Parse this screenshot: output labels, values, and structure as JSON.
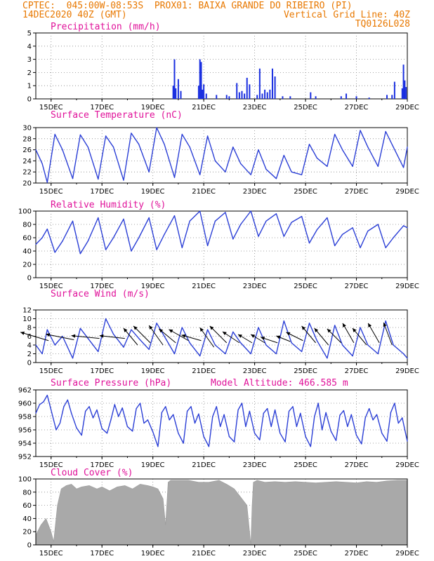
{
  "header": {
    "line1_left": "CPTEC:  045:00W-08:53S  PROX01: BAIXA GRANDE DO RIBEIRO (PI)",
    "line2_left": "14DEC2020 40Z (GMT)",
    "line2_right": "Vertical Grid Line: 40Z",
    "line3_right": "TQ0126L028"
  },
  "colors": {
    "header": "#e87800",
    "title": "#e0129a",
    "line": "#2b3fd6",
    "bar": "#a9a9a9",
    "precip": "#1a2fe0"
  },
  "x_axis": {
    "labels": [
      "15DEC",
      "17DEC",
      "19DEC",
      "21DEC",
      "23DEC",
      "25DEC",
      "27DEC",
      "29DEC"
    ],
    "label_days": [
      15,
      17,
      19,
      21,
      23,
      25,
      27,
      29
    ],
    "start_day": 14.4,
    "end_day": 29.0
  },
  "chart_data": [
    {
      "type": "bar",
      "title": "Precipitation (mm/h)",
      "ylim": [
        0,
        5
      ],
      "yticks": [
        0,
        1,
        2,
        3,
        4,
        5
      ],
      "x_day": [
        19.8,
        19.85,
        19.9,
        20.0,
        20.1,
        20.8,
        20.85,
        20.9,
        20.95,
        21.0,
        21.1,
        21.5,
        21.9,
        22.0,
        22.3,
        22.4,
        22.5,
        22.6,
        22.7,
        22.8,
        23.1,
        23.2,
        23.3,
        23.4,
        23.5,
        23.6,
        23.7,
        23.8,
        24.1,
        24.4,
        25.2,
        25.4,
        26.4,
        26.6,
        27.0,
        27.5,
        28.2,
        28.4,
        28.5,
        28.8,
        28.85,
        28.9,
        28.95
      ],
      "values": [
        1.0,
        3.0,
        0.8,
        1.5,
        0.6,
        1.0,
        3.0,
        2.8,
        0.7,
        1.1,
        0.4,
        0.3,
        0.3,
        0.2,
        1.2,
        0.5,
        0.6,
        0.4,
        1.6,
        1.1,
        0.3,
        2.3,
        0.4,
        0.7,
        0.5,
        0.7,
        2.3,
        1.7,
        0.2,
        0.2,
        0.5,
        0.2,
        0.2,
        0.4,
        0.2,
        0.1,
        0.3,
        0.3,
        1.3,
        0.8,
        2.6,
        1.4,
        0.9
      ]
    },
    {
      "type": "line",
      "title": "Surface Temperature (nC)",
      "ylim": [
        20,
        30
      ],
      "yticks": [
        20,
        22,
        24,
        26,
        28,
        30
      ],
      "x_day": [
        14.4,
        14.65,
        14.85,
        15.15,
        15.45,
        15.85,
        16.15,
        16.45,
        16.85,
        17.15,
        17.45,
        17.85,
        18.15,
        18.45,
        18.85,
        19.15,
        19.45,
        19.85,
        20.15,
        20.45,
        20.85,
        21.15,
        21.45,
        21.85,
        22.15,
        22.45,
        22.85,
        23.15,
        23.45,
        23.85,
        24.15,
        24.45,
        24.85,
        25.15,
        25.45,
        25.85,
        26.15,
        26.45,
        26.85,
        27.15,
        27.45,
        27.85,
        28.15,
        28.45,
        28.85,
        29.0
      ],
      "values": [
        26.0,
        23.5,
        20.1,
        28.8,
        26.0,
        20.8,
        28.7,
        26.5,
        20.7,
        28.5,
        26.5,
        20.5,
        29.0,
        27.0,
        22.0,
        30.0,
        27.0,
        21.0,
        28.8,
        26.5,
        21.5,
        28.5,
        24.0,
        22.0,
        26.5,
        23.5,
        21.5,
        26.0,
        22.5,
        20.8,
        25.0,
        22.0,
        21.5,
        27.0,
        24.5,
        23.0,
        28.8,
        26.0,
        23.0,
        29.5,
        26.5,
        23.0,
        29.3,
        26.5,
        22.8,
        26.5
      ]
    },
    {
      "type": "line",
      "title": "Relative Humidity (%)",
      "ylim": [
        0,
        100
      ],
      "yticks": [
        0,
        20,
        40,
        60,
        80,
        100
      ],
      "x_day": [
        14.4,
        14.65,
        14.85,
        15.15,
        15.45,
        15.85,
        16.15,
        16.45,
        16.85,
        17.15,
        17.45,
        17.85,
        18.15,
        18.45,
        18.85,
        19.15,
        19.45,
        19.85,
        20.15,
        20.45,
        20.85,
        21.15,
        21.45,
        21.85,
        22.15,
        22.45,
        22.85,
        23.15,
        23.45,
        23.85,
        24.15,
        24.45,
        24.85,
        25.15,
        25.45,
        25.85,
        26.15,
        26.45,
        26.85,
        27.15,
        27.45,
        27.85,
        28.15,
        28.45,
        28.85,
        29.0
      ],
      "values": [
        50.0,
        60.0,
        73.0,
        38.0,
        55.0,
        85.0,
        36.0,
        55.0,
        90.0,
        42.0,
        60.0,
        88.0,
        40.0,
        60.0,
        90.0,
        42.0,
        65.0,
        93.0,
        45.0,
        85.0,
        100.0,
        48.0,
        85.0,
        98.0,
        58.0,
        80.0,
        100.0,
        62.0,
        85.0,
        96.0,
        62.0,
        83.0,
        92.0,
        52.0,
        72.0,
        90.0,
        48.0,
        65.0,
        75.0,
        45.0,
        70.0,
        80.0,
        45.0,
        60.0,
        78.0,
        75.0
      ]
    },
    {
      "type": "line",
      "title": "Surface Wind (m/s)",
      "ylim": [
        0,
        12
      ],
      "yticks": [
        0,
        2,
        4,
        6,
        8,
        10,
        12
      ],
      "x_day": [
        14.4,
        14.65,
        14.85,
        15.15,
        15.45,
        15.85,
        16.15,
        16.45,
        16.85,
        17.15,
        17.45,
        17.85,
        18.15,
        18.45,
        18.85,
        19.15,
        19.45,
        19.85,
        20.15,
        20.45,
        20.85,
        21.15,
        21.45,
        21.85,
        22.15,
        22.45,
        22.85,
        23.15,
        23.45,
        23.85,
        24.15,
        24.45,
        24.85,
        25.15,
        25.45,
        25.85,
        26.15,
        26.45,
        26.85,
        27.15,
        27.45,
        27.85,
        28.15,
        28.45,
        28.85,
        29.0
      ],
      "values": [
        4.0,
        2.0,
        7.5,
        4.0,
        6.0,
        1.0,
        7.8,
        5.5,
        2.5,
        10.0,
        6.5,
        3.5,
        7.5,
        5.5,
        3.0,
        9.0,
        6.0,
        2.0,
        8.0,
        4.5,
        1.5,
        7.5,
        4.0,
        2.0,
        7.0,
        4.5,
        2.0,
        8.0,
        4.0,
        2.0,
        9.5,
        4.5,
        2.5,
        9.0,
        5.0,
        1.0,
        8.5,
        4.0,
        1.5,
        8.0,
        4.0,
        2.0,
        9.5,
        4.0,
        2.0,
        1.0
      ],
      "arrow_day": [
        14.9,
        15.9,
        16.9,
        17.9,
        18.4,
        18.9,
        19.4,
        19.9,
        20.4,
        20.9,
        21.4,
        21.9,
        22.4,
        22.9,
        23.4,
        23.9,
        24.4,
        24.9,
        25.4,
        25.9,
        26.4,
        26.9,
        27.4,
        27.9,
        28.4
      ],
      "arrow_level": [
        5.0,
        5.2,
        5.5,
        5.5,
        4.0,
        4.5,
        4.0,
        4.5,
        5.0,
        5.0,
        3.5,
        4.5,
        4.5,
        4.5,
        4.5,
        4.5,
        4.8,
        5.0,
        4.5,
        4.0,
        4.5,
        4.5,
        4.0,
        4.5,
        4.0
      ],
      "arrow_dx": [
        -1.0,
        -1.0,
        -1.0,
        -0.9,
        -0.5,
        -0.6,
        -0.5,
        -0.6,
        -0.7,
        -0.7,
        -0.5,
        -0.6,
        -0.6,
        -0.5,
        -0.5,
        -0.6,
        -0.5,
        -0.6,
        -0.5,
        -0.5,
        -0.5,
        -0.4,
        -0.5,
        -0.4,
        -0.3
      ],
      "arrow_dy": [
        0.3,
        0.2,
        0.1,
        0.1,
        0.6,
        0.6,
        0.7,
        0.5,
        0.4,
        0.2,
        0.7,
        0.6,
        0.4,
        0.3,
        0.3,
        0.2,
        0.2,
        0.3,
        0.6,
        0.6,
        0.5,
        0.7,
        0.6,
        0.7,
        0.8
      ]
    },
    {
      "type": "line",
      "title": "Surface Pressure (hPa)",
      "subtitle": "Model Altitude: 466.585 m",
      "ylim": [
        952,
        962
      ],
      "yticks": [
        952,
        954,
        956,
        958,
        960,
        962
      ],
      "x_day": [
        14.4,
        14.55,
        14.7,
        14.85,
        15.0,
        15.2,
        15.35,
        15.5,
        15.65,
        15.8,
        16.0,
        16.2,
        16.35,
        16.5,
        16.65,
        16.8,
        17.0,
        17.2,
        17.35,
        17.5,
        17.65,
        17.8,
        18.0,
        18.2,
        18.35,
        18.5,
        18.65,
        18.8,
        19.0,
        19.2,
        19.35,
        19.5,
        19.65,
        19.8,
        20.0,
        20.2,
        20.35,
        20.5,
        20.65,
        20.8,
        21.0,
        21.2,
        21.35,
        21.5,
        21.65,
        21.8,
        22.0,
        22.2,
        22.35,
        22.5,
        22.65,
        22.8,
        23.0,
        23.2,
        23.35,
        23.5,
        23.65,
        23.8,
        24.0,
        24.2,
        24.35,
        24.5,
        24.65,
        24.8,
        25.0,
        25.2,
        25.35,
        25.5,
        25.65,
        25.8,
        26.0,
        26.2,
        26.35,
        26.5,
        26.65,
        26.8,
        27.0,
        27.2,
        27.35,
        27.5,
        27.65,
        27.8,
        28.0,
        28.2,
        28.35,
        28.5,
        28.65,
        28.8,
        29.0
      ],
      "values": [
        958.5,
        959.8,
        960.2,
        961.2,
        959.0,
        956.0,
        957.0,
        959.5,
        960.5,
        958.5,
        956.3,
        955.2,
        958.8,
        959.5,
        957.8,
        959.0,
        956.2,
        955.5,
        957.5,
        959.8,
        958.0,
        959.3,
        956.5,
        955.8,
        959.2,
        960.0,
        957.0,
        957.5,
        955.7,
        953.5,
        958.6,
        959.5,
        957.5,
        958.3,
        955.5,
        954.0,
        958.8,
        959.5,
        957.0,
        958.4,
        955.0,
        953.5,
        958.0,
        959.5,
        956.5,
        958.3,
        955.0,
        954.2,
        959.0,
        960.0,
        956.5,
        958.8,
        955.5,
        954.5,
        958.5,
        959.2,
        956.5,
        959.0,
        955.5,
        954.2,
        958.8,
        959.5,
        956.5,
        958.5,
        955.0,
        953.5,
        958.0,
        960.0,
        956.0,
        958.6,
        955.8,
        954.4,
        958.2,
        958.9,
        956.5,
        958.3,
        955.2,
        953.9,
        957.8,
        959.2,
        957.5,
        958.3,
        955.5,
        954.3,
        958.6,
        960.0,
        957.0,
        957.8,
        954.3
      ]
    },
    {
      "type": "area",
      "title": "Cloud Cover (%)",
      "ylim": [
        0,
        100
      ],
      "yticks": [
        0,
        20,
        40,
        60,
        80,
        100
      ],
      "x_day": [
        14.4,
        14.6,
        14.8,
        15.0,
        15.1,
        15.25,
        15.4,
        15.6,
        15.8,
        16.0,
        16.2,
        16.5,
        16.8,
        17.0,
        17.3,
        17.6,
        17.9,
        18.2,
        18.5,
        18.8,
        19.0,
        19.2,
        19.4,
        19.5,
        19.6,
        19.7,
        20.0,
        20.4,
        20.8,
        21.2,
        21.6,
        21.9,
        22.2,
        22.5,
        22.7,
        22.8,
        22.85,
        22.9,
        22.95,
        23.1,
        23.4,
        23.8,
        24.2,
        24.6,
        25.0,
        25.4,
        25.8,
        26.2,
        26.6,
        27.0,
        27.4,
        27.8,
        28.2,
        28.6,
        29.0
      ],
      "values": [
        15.0,
        30.0,
        40.0,
        20.0,
        5.0,
        60.0,
        85.0,
        90.0,
        92.0,
        85.0,
        88.0,
        90.0,
        85.0,
        88.0,
        82.0,
        88.0,
        90.0,
        85.0,
        92.0,
        90.0,
        88.0,
        85.0,
        70.0,
        30.0,
        95.0,
        98.0,
        98.0,
        98.0,
        95.0,
        95.0,
        98.0,
        92.0,
        85.0,
        70.0,
        60.0,
        20.0,
        0.0,
        60.0,
        95.0,
        98.0,
        95.0,
        96.0,
        95.0,
        96.0,
        95.0,
        94.0,
        95.0,
        96.0,
        95.0,
        94.0,
        96.0,
        95.0,
        97.0,
        98.0,
        98.0
      ]
    }
  ]
}
